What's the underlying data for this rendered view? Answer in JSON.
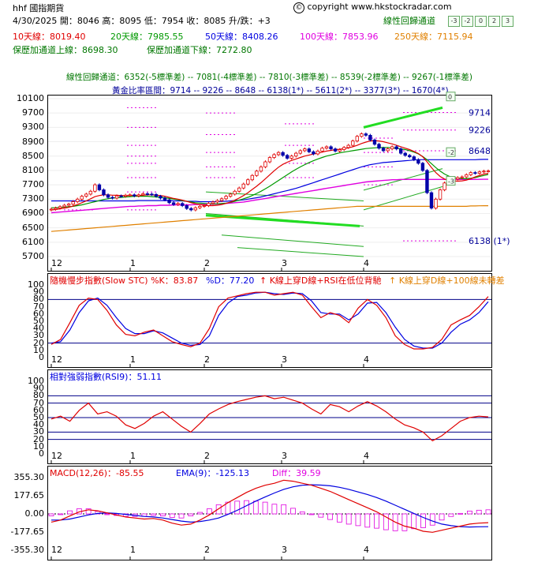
{
  "header": {
    "symbol": "hhf 國指期貨",
    "copyright_symbol": "©",
    "copyright": "copyright www.hkstockradar.com",
    "quote": "4/30/2025 開：8046 高：8095 低：7954 收：8085 升/跌：+3",
    "regression_title": "線性回歸通道",
    "regression_buttons": [
      "-3",
      "-2",
      "0",
      "2",
      "3"
    ],
    "ma10": "10天線：8019.40",
    "ma20": "20天線：7985.55",
    "ma50": "50天線：8408.26",
    "ma100": "100天線：7853.96",
    "ma250": "250天線：7115.94",
    "upper_channel": "保歷加通道上線：8698.30",
    "lower_channel": "保歷加通道下線：7272.80",
    "regression_line": "線性回歸通道：6352(-5標準差) -- 7081(-4標準差) -- 7810(-3標準差) -- 8539(-2標準差) -- 9267(-1標準差)",
    "golden_line": "黃金比率區間：9714 -- 9226 -- 8648 -- 6138(1*) -- 5611(2*) -- 3377(3*) -- 1670(4*)"
  },
  "colors": {
    "ma10": "#e00000",
    "ma20": "#009900",
    "ma50": "#0000e0",
    "ma100": "#e000e0",
    "ma250": "#e08000",
    "channel": "#007700",
    "blue_text": "#000099",
    "stoch_k": "#e00000",
    "stoch_d": "#0000e0",
    "rsi": "#e00000",
    "macd": "#e00000",
    "ema": "#0000e0",
    "diff": "#e000e0",
    "grid": "#cccccc",
    "bull_candle": "#e00000",
    "bear_candle": "#0000aa"
  },
  "chart_data": [
    {
      "type": "line",
      "title": "",
      "x_ticks": [
        "12",
        "1",
        "2",
        "3",
        "4"
      ],
      "y_ticks": [
        5700,
        6100,
        6500,
        6900,
        7300,
        7700,
        8100,
        8500,
        8900,
        9300,
        9700,
        10100
      ],
      "ylim": [
        5700,
        10100
      ],
      "fib_labels": [
        "9714",
        "9226",
        "8648",
        "6138 (1*)"
      ],
      "fib_values": [
        9714,
        9226,
        8648,
        6138
      ],
      "regression_markers": [
        "0",
        "-2",
        "-3"
      ],
      "close": [
        7020,
        7050,
        7090,
        7130,
        7160,
        7230,
        7300,
        7380,
        7440,
        7520,
        7700,
        7560,
        7420,
        7350,
        7330,
        7390,
        7380,
        7410,
        7420,
        7390,
        7420,
        7450,
        7440,
        7430,
        7380,
        7330,
        7280,
        7200,
        7150,
        7180,
        7120,
        7040,
        7000,
        7060,
        7100,
        7120,
        7180,
        7220,
        7260,
        7310,
        7380,
        7440,
        7520,
        7610,
        7720,
        7840,
        7960,
        8080,
        8200,
        8340,
        8460,
        8540,
        8600,
        8520,
        8440,
        8500,
        8580,
        8650,
        8700,
        8620,
        8560,
        8640,
        8720,
        8760,
        8700,
        8640,
        8680,
        8740,
        8800,
        8920,
        9050,
        9120,
        9080,
        8950,
        8830,
        8720,
        8650,
        8700,
        8760,
        8700,
        8580,
        8520,
        8480,
        8400,
        8300,
        8100,
        7480,
        7050,
        7300,
        7560,
        7750,
        7820,
        7860,
        7900,
        7920,
        7980,
        8040,
        8020,
        8060,
        8080,
        8085
      ],
      "ma10": [
        7000,
        7010,
        7030,
        7050,
        7070,
        7110,
        7150,
        7200,
        7250,
        7310,
        7370,
        7400,
        7420,
        7420,
        7410,
        7410,
        7400,
        7400,
        7400,
        7400,
        7400,
        7410,
        7420,
        7420,
        7410,
        7400,
        7380,
        7350,
        7320,
        7300,
        7270,
        7240,
        7200,
        7170,
        7150,
        7130,
        7120,
        7120,
        7130,
        7150,
        7180,
        7220,
        7270,
        7330,
        7400,
        7480,
        7570,
        7660,
        7760,
        7870,
        7980,
        8090,
        8190,
        8270,
        8330,
        8380,
        8420,
        8460,
        8500,
        8530,
        8560,
        8580,
        8610,
        8640,
        8660,
        8680,
        8690,
        8710,
        8730,
        8760,
        8800,
        8850,
        8890,
        8920,
        8930,
        8920,
        8900,
        8870,
        8840,
        8800,
        8760,
        8720,
        8680,
        8630,
        8570,
        8480,
        8340,
        8180,
        8040,
        7930,
        7860,
        7820,
        7810,
        7800,
        7810,
        7830,
        7870,
        7920,
        7960,
        8000,
        8019
      ],
      "ma20": [
        7060,
        7060,
        7070,
        7080,
        7090,
        7100,
        7120,
        7140,
        7170,
        7200,
        7230,
        7260,
        7290,
        7310,
        7330,
        7340,
        7350,
        7360,
        7370,
        7380,
        7380,
        7380,
        7380,
        7370,
        7360,
        7350,
        7340,
        7320,
        7300,
        7280,
        7260,
        7240,
        7220,
        7200,
        7190,
        7180,
        7170,
        7170,
        7170,
        7180,
        7190,
        7210,
        7240,
        7270,
        7310,
        7350,
        7400,
        7460,
        7520,
        7590,
        7660,
        7740,
        7820,
        7900,
        7980,
        8060,
        8130,
        8200,
        8260,
        8320,
        8370,
        8420,
        8460,
        8500,
        8530,
        8560,
        8590,
        8610,
        8630,
        8650,
        8670,
        8690,
        8710,
        8720,
        8730,
        8740,
        8740,
        8740,
        8730,
        8720,
        8700,
        8680,
        8650,
        8610,
        8560,
        8490,
        8400,
        8290,
        8180,
        8080,
        8000,
        7940,
        7900,
        7880,
        7870,
        7870,
        7880,
        7900,
        7930,
        7960,
        7986
      ],
      "ma50": [
        7250,
        7250,
        7250,
        7250,
        7250,
        7250,
        7250,
        7250,
        7250,
        7250,
        7250,
        7250,
        7250,
        7250,
        7250,
        7250,
        7250,
        7250,
        7250,
        7250,
        7260,
        7260,
        7260,
        7260,
        7260,
        7260,
        7260,
        7260,
        7250,
        7250,
        7250,
        7240,
        7240,
        7240,
        7230,
        7230,
        7230,
        7230,
        7230,
        7240,
        7240,
        7250,
        7260,
        7270,
        7280,
        7300,
        7320,
        7340,
        7360,
        7390,
        7420,
        7450,
        7480,
        7510,
        7540,
        7570,
        7600,
        7640,
        7680,
        7720,
        7760,
        7800,
        7840,
        7880,
        7920,
        7960,
        8000,
        8040,
        8080,
        8120,
        8160,
        8200,
        8230,
        8260,
        8280,
        8300,
        8320,
        8330,
        8340,
        8350,
        8360,
        8370,
        8380,
        8390,
        8400,
        8400,
        8400,
        8400,
        8400,
        8400,
        8400,
        8400,
        8400,
        8400,
        8400,
        8400,
        8400,
        8400,
        8405,
        8408,
        8408
      ],
      "ma100": [
        6920,
        6930,
        6940,
        6950,
        6960,
        6970,
        6980,
        6990,
        7000,
        7010,
        7020,
        7030,
        7040,
        7050,
        7060,
        7070,
        7080,
        7090,
        7100,
        7100,
        7110,
        7110,
        7120,
        7120,
        7120,
        7130,
        7130,
        7130,
        7140,
        7140,
        7140,
        7140,
        7140,
        7150,
        7150,
        7150,
        7150,
        7160,
        7160,
        7170,
        7180,
        7190,
        7200,
        7210,
        7220,
        7240,
        7260,
        7280,
        7300,
        7320,
        7340,
        7360,
        7380,
        7400,
        7420,
        7440,
        7460,
        7480,
        7500,
        7520,
        7540,
        7560,
        7580,
        7600,
        7620,
        7640,
        7660,
        7680,
        7700,
        7720,
        7740,
        7760,
        7780,
        7790,
        7800,
        7810,
        7820,
        7830,
        7840,
        7840,
        7850,
        7850,
        7850,
        7850,
        7850,
        7850,
        7850,
        7850,
        7850,
        7850,
        7850,
        7850,
        7850,
        7850,
        7850,
        7850,
        7850,
        7850,
        7852,
        7854,
        7854
      ],
      "ma250": [
        6400,
        6410,
        6420,
        6430,
        6440,
        6450,
        6460,
        6470,
        6480,
        6490,
        6500,
        6510,
        6520,
        6530,
        6540,
        6550,
        6560,
        6570,
        6580,
        6590,
        6600,
        6610,
        6620,
        6630,
        6640,
        6650,
        6660,
        6670,
        6680,
        6690,
        6700,
        6710,
        6720,
        6730,
        6740,
        6750,
        6760,
        6770,
        6780,
        6790,
        6800,
        6810,
        6820,
        6830,
        6840,
        6850,
        6860,
        6870,
        6880,
        6890,
        6900,
        6910,
        6920,
        6930,
        6940,
        6950,
        6960,
        6970,
        6980,
        6990,
        7000,
        7010,
        7020,
        7030,
        7040,
        7050,
        7060,
        7070,
        7080,
        7090,
        7100,
        7100,
        7100,
        7100,
        7100,
        7100,
        7100,
        7100,
        7100,
        7100,
        7100,
        7100,
        7100,
        7100,
        7100,
        7100,
        7100,
        7100,
        7100,
        7100,
        7100,
        7100,
        7100,
        7100,
        7100,
        7100,
        7110,
        7110,
        7115,
        7116,
        7116
      ]
    },
    {
      "type": "line",
      "title": "隨機慢步指數(Slow STC) %K：83.87",
      "d_label": "%D：77.20",
      "signal_1": "K線上穿D線+RSI在低位背馳",
      "signal_2": "K線上穿D線+100線未轉差",
      "x_ticks": [
        "12",
        "1",
        "2",
        "3",
        "4"
      ],
      "y_ticks": [
        0,
        10,
        20,
        30,
        40,
        50,
        60,
        70,
        80,
        90,
        100
      ],
      "ylim": [
        0,
        100
      ],
      "k": [
        18,
        25,
        48,
        72,
        82,
        80,
        65,
        45,
        32,
        30,
        35,
        38,
        30,
        22,
        18,
        15,
        20,
        40,
        70,
        82,
        85,
        88,
        90,
        90,
        86,
        88,
        90,
        86,
        70,
        55,
        62,
        58,
        48,
        68,
        80,
        72,
        55,
        30,
        18,
        12,
        12,
        14,
        25,
        45,
        52,
        58,
        70,
        84
      ],
      "d": [
        20,
        22,
        38,
        62,
        78,
        82,
        72,
        55,
        40,
        33,
        33,
        37,
        34,
        27,
        20,
        17,
        18,
        30,
        58,
        75,
        84,
        86,
        89,
        90,
        88,
        87,
        89,
        88,
        78,
        62,
        60,
        60,
        52,
        60,
        75,
        76,
        62,
        42,
        25,
        16,
        13,
        13,
        20,
        35,
        46,
        52,
        62,
        77
      ]
    },
    {
      "type": "line",
      "title": "相對強弱指數(RSI9)：51.11",
      "x_ticks": [
        "12",
        "1",
        "2",
        "3",
        "4"
      ],
      "y_ticks": [
        0,
        10,
        20,
        30,
        40,
        50,
        60,
        70,
        80,
        90,
        100
      ],
      "ylim": [
        0,
        100
      ],
      "values": [
        48,
        52,
        45,
        60,
        70,
        55,
        58,
        52,
        40,
        35,
        42,
        52,
        58,
        48,
        38,
        30,
        42,
        55,
        62,
        68,
        72,
        75,
        78,
        80,
        76,
        78,
        74,
        70,
        62,
        55,
        68,
        65,
        58,
        66,
        72,
        66,
        58,
        48,
        40,
        36,
        30,
        18,
        25,
        35,
        45,
        50,
        52,
        51
      ]
    },
    {
      "type": "bar",
      "title": "MACD(12,26)：-85.55",
      "ema_label": "EMA(9)：-125.13",
      "diff_label": "Diff：39.59",
      "x_ticks": [
        "12",
        "1",
        "2",
        "3",
        "4"
      ],
      "y_ticks": [
        "355.30",
        "177.65",
        "0.00",
        "-177.65",
        "-355.30"
      ],
      "ylim": [
        -355.3,
        355.3
      ],
      "macd": [
        -80,
        -60,
        -20,
        20,
        40,
        30,
        10,
        -10,
        -30,
        -40,
        -50,
        -45,
        -60,
        -90,
        -110,
        -100,
        -60,
        -10,
        50,
        110,
        160,
        210,
        250,
        280,
        300,
        330,
        320,
        300,
        280,
        250,
        220,
        180,
        140,
        100,
        60,
        20,
        -30,
        -80,
        -120,
        -140,
        -170,
        -180,
        -160,
        -140,
        -120,
        -100,
        -90,
        -86
      ],
      "ema": [
        -60,
        -60,
        -50,
        -30,
        -10,
        5,
        10,
        5,
        -5,
        -15,
        -25,
        -30,
        -40,
        -55,
        -70,
        -80,
        -75,
        -60,
        -40,
        -5,
        35,
        80,
        125,
        165,
        205,
        240,
        265,
        280,
        285,
        282,
        275,
        260,
        240,
        215,
        190,
        160,
        125,
        85,
        45,
        5,
        -35,
        -70,
        -100,
        -115,
        -125,
        -128,
        -126,
        -125
      ],
      "diff": [
        -20,
        0,
        30,
        50,
        50,
        25,
        0,
        -15,
        -25,
        -25,
        -25,
        -15,
        -20,
        -35,
        -40,
        -20,
        15,
        50,
        90,
        115,
        125,
        130,
        125,
        115,
        95,
        90,
        55,
        20,
        -5,
        -32,
        -55,
        -80,
        -100,
        -115,
        -130,
        -140,
        -155,
        -165,
        -165,
        -145,
        -135,
        -110,
        -60,
        -25,
        5,
        28,
        36,
        40
      ]
    }
  ]
}
